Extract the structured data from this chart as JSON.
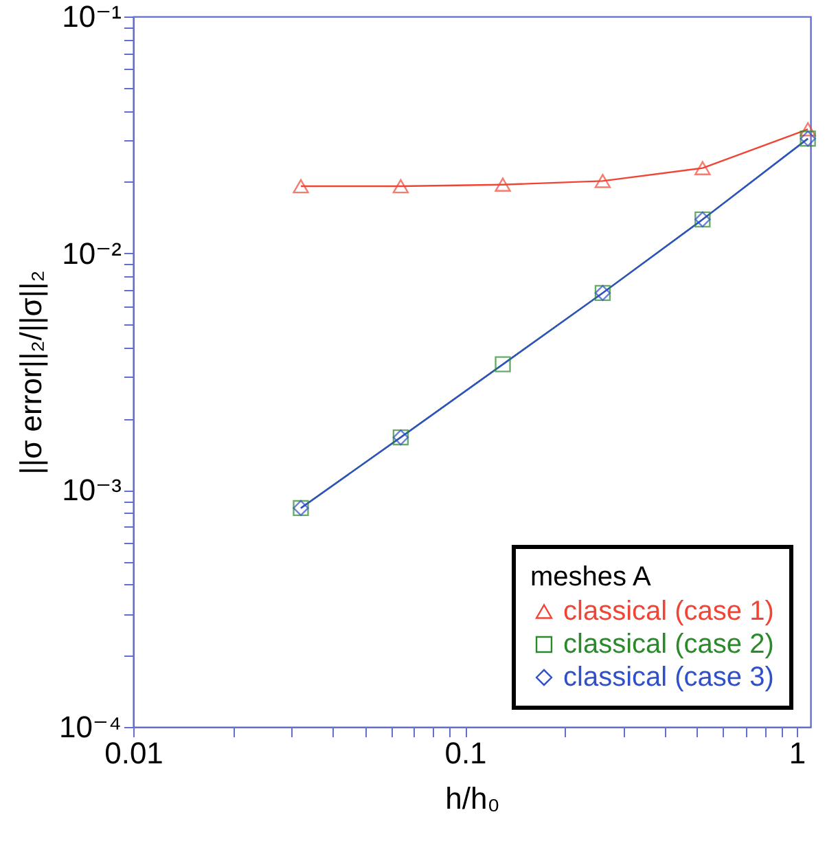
{
  "chart_data": {
    "type": "line",
    "xlabel": "h/h₀",
    "ylabel": "||σ error||₂/||σ||₂",
    "legend_title": "meshes A",
    "log": "xy",
    "grid": false,
    "legend": "bottom right",
    "x": [
      0.032,
      0.064,
      0.13,
      0.26,
      0.52,
      1.08
    ],
    "xlim": [
      0.01,
      1.1
    ],
    "xticks": [
      0.01,
      {
        "value": 0.02,
        "label": null
      },
      {
        "value": 0.03,
        "label": null
      },
      {
        "value": 0.04,
        "label": null
      },
      {
        "value": 0.05,
        "label": null
      },
      {
        "value": 0.06,
        "label": null
      },
      {
        "value": 0.07,
        "label": null
      },
      {
        "value": 0.08,
        "label": null
      },
      {
        "value": 0.09,
        "label": null
      },
      0.1,
      {
        "value": 0.2,
        "label": null
      },
      {
        "value": 0.3,
        "label": null
      },
      {
        "value": 0.4,
        "label": null
      },
      {
        "value": 0.5,
        "label": null
      },
      {
        "value": 0.6,
        "label": null
      },
      {
        "value": 0.7,
        "label": null
      },
      {
        "value": 0.8,
        "label": null
      },
      {
        "value": 0.9,
        "label": null
      },
      1
    ],
    "ylim": [
      0.0001,
      0.1
    ],
    "yticks": [
      {
        "value": 0.0001,
        "label": "10⁻⁴"
      },
      {
        "value": 0.0002,
        "label": null
      },
      {
        "value": 0.0003,
        "label": null
      },
      {
        "value": 0.0004,
        "label": null
      },
      {
        "value": 0.0005,
        "label": null
      },
      {
        "value": 0.0006,
        "label": null
      },
      {
        "value": 0.0007,
        "label": null
      },
      {
        "value": 0.0008,
        "label": null
      },
      {
        "value": 0.0009,
        "label": null
      },
      {
        "value": 0.001,
        "label": "10⁻³"
      },
      {
        "value": 0.002,
        "label": null
      },
      {
        "value": 0.003,
        "label": null
      },
      {
        "value": 0.004,
        "label": null
      },
      {
        "value": 0.005,
        "label": null
      },
      {
        "value": 0.006,
        "label": null
      },
      {
        "value": 0.007,
        "label": null
      },
      {
        "value": 0.008,
        "label": null
      },
      {
        "value": 0.009,
        "label": null
      },
      {
        "value": 0.01,
        "label": "10⁻²"
      },
      {
        "value": 0.02,
        "label": null
      },
      {
        "value": 0.03,
        "label": null
      },
      {
        "value": 0.04,
        "label": null
      },
      {
        "value": 0.05,
        "label": null
      },
      {
        "value": 0.06,
        "label": null
      },
      {
        "value": 0.07,
        "label": null
      },
      {
        "value": 0.08,
        "label": null
      },
      {
        "value": 0.09,
        "label": null
      },
      {
        "value": 0.1,
        "label": "10⁻¹"
      }
    ],
    "series": [
      {
        "name": "classical (case 1)",
        "color": "#f04535",
        "marker": "triangle",
        "values": [
          0.0192,
          0.0192,
          0.0195,
          0.0202,
          0.0229,
          0.0334
        ]
      },
      {
        "name": "classical (case 2)",
        "color": "#2a8a2a",
        "marker": "square",
        "values": [
          0.00084,
          0.00167,
          0.0034,
          0.0068,
          0.0139,
          0.0305
        ]
      },
      {
        "name": "classical (case 3)",
        "color": "#3050c8",
        "marker": "diamond",
        "x": [
          0.032,
          0.064,
          0.26,
          0.52,
          1.08
        ],
        "values": [
          0.00084,
          0.00167,
          0.0068,
          0.0139,
          0.0305
        ]
      }
    ]
  }
}
